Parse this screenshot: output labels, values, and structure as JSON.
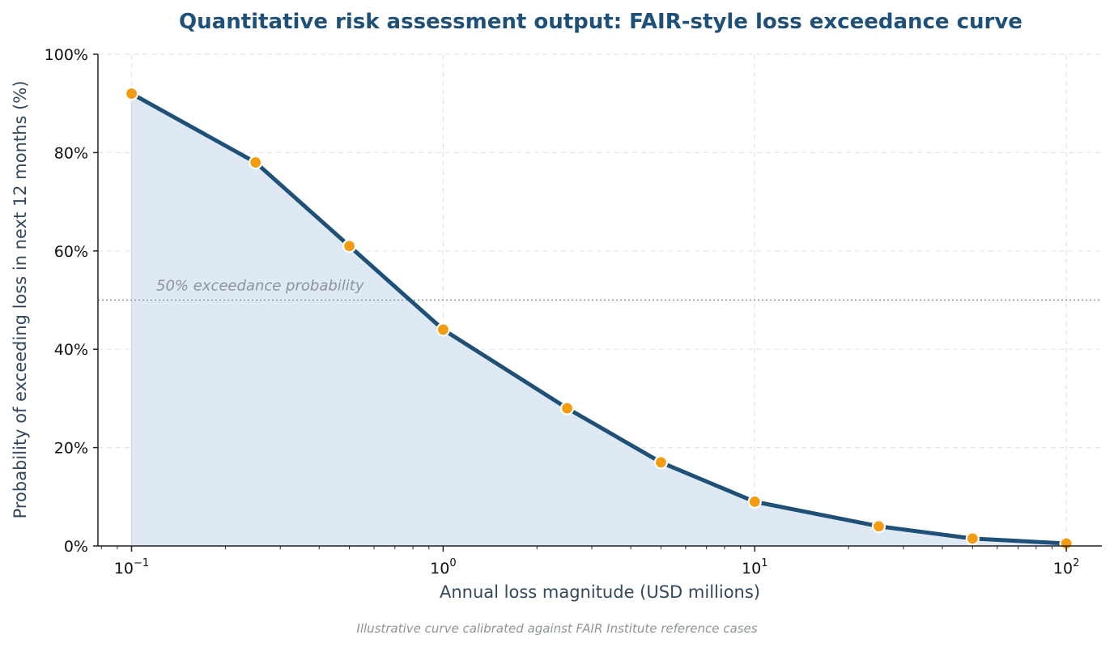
{
  "chart_data": {
    "type": "area",
    "title": "Quantitative risk assessment output: FAIR-style loss exceedance curve",
    "xlabel": "Annual loss magnitude (USD millions)",
    "ylabel": "Probability of exceeding loss in next 12 months (%)",
    "xscale": "log",
    "xlim": [
      0.1,
      100
    ],
    "ylim": [
      0,
      100
    ],
    "x_ticks": [
      {
        "base": "10",
        "exp": "−1"
      },
      {
        "base": "10",
        "exp": "0"
      },
      {
        "base": "10",
        "exp": "1"
      },
      {
        "base": "10",
        "exp": "2"
      }
    ],
    "y_ticks": [
      "0%",
      "20%",
      "40%",
      "60%",
      "80%",
      "100%"
    ],
    "grid": true,
    "series": [
      {
        "x": [
          0.1,
          0.25,
          0.5,
          1,
          2.5,
          5,
          10,
          25,
          50,
          100
        ],
        "y": [
          92,
          78,
          61,
          44,
          28,
          17,
          9,
          4,
          1.5,
          0.5
        ]
      }
    ],
    "reference_line": {
      "y": 50,
      "label": "50% exceedance probability"
    },
    "caption": "Illustrative curve calibrated against FAIR Institute reference cases",
    "colors": {
      "line": "#1f5078",
      "fill": "#dfe9f3",
      "marker": "#f39c12",
      "marker_edge": "#ffffff",
      "reference": "#8c9599",
      "grid": "#e6e6e6",
      "title": "#1f5078",
      "axis_label": "#34495e"
    }
  }
}
